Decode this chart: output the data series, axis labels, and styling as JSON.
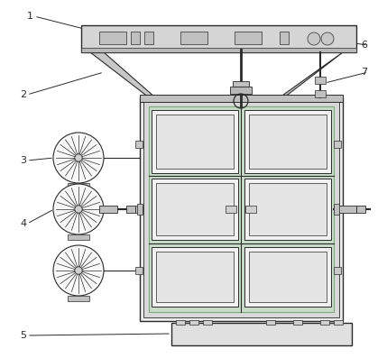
{
  "bg_color": "#ffffff",
  "line_color": "#2a2a2a",
  "lc_thin": "#3a3a3a"
}
